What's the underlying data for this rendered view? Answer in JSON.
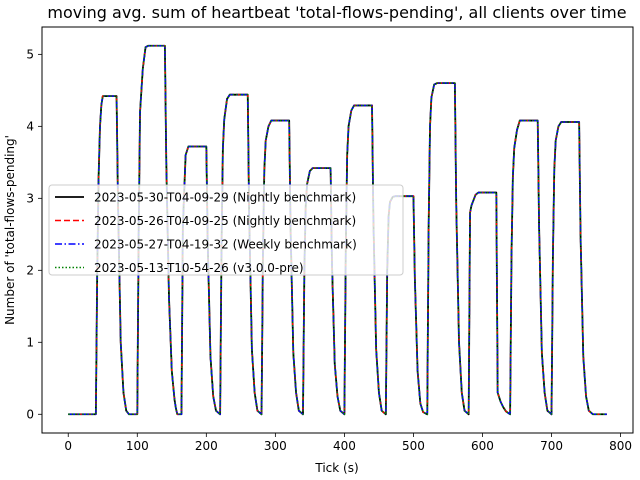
{
  "chart_data": {
    "type": "line",
    "title": "moving avg. sum of heartbeat 'total-flows-pending', all clients over time",
    "xlabel": "Tick (s)",
    "ylabel": "Number of 'total-flows-pending'",
    "xlim": [
      -38,
      818
    ],
    "ylim": [
      -0.26,
      5.38
    ],
    "xticks": [
      0,
      100,
      200,
      300,
      400,
      500,
      600,
      700,
      800
    ],
    "yticks": [
      0,
      1,
      2,
      3,
      4,
      5
    ],
    "grid": false,
    "legend_location": "center-left",
    "x": [
      0,
      40,
      42,
      44,
      46,
      48,
      50,
      54,
      70,
      72,
      76,
      80,
      84,
      88,
      90,
      92,
      100,
      102,
      104,
      108,
      112,
      116,
      120,
      140,
      142,
      146,
      150,
      154,
      156,
      158,
      160,
      162,
      164,
      166,
      170,
      174,
      180,
      200,
      202,
      206,
      210,
      214,
      220,
      222,
      224,
      226,
      230,
      234,
      240,
      260,
      262,
      266,
      270,
      274,
      280,
      282,
      284,
      286,
      290,
      294,
      300,
      320,
      322,
      326,
      330,
      334,
      340,
      342,
      344,
      346,
      350,
      354,
      360,
      380,
      382,
      386,
      390,
      394,
      400,
      402,
      404,
      406,
      410,
      414,
      420,
      440,
      442,
      446,
      450,
      454,
      460,
      462,
      464,
      466,
      470,
      474,
      480,
      500,
      502,
      506,
      510,
      514,
      520,
      522,
      524,
      526,
      530,
      534,
      540,
      560,
      562,
      566,
      570,
      574,
      580,
      582,
      584,
      586,
      590,
      594,
      600,
      620,
      622,
      626,
      630,
      634,
      640,
      642,
      644,
      646,
      650,
      654,
      660,
      680,
      682,
      686,
      690,
      694,
      700,
      702,
      704,
      706,
      710,
      714,
      720,
      740,
      742,
      746,
      750,
      754,
      760,
      780
    ],
    "series": [
      {
        "name": "2023-05-30-T04-09-29 (Nightly benchmark)",
        "color": "#000000",
        "dash": "",
        "width": 1.8,
        "values": [
          0,
          0,
          2.0,
          3.3,
          4.0,
          4.3,
          4.42,
          4.42,
          4.42,
          3.0,
          1.0,
          0.3,
          0.05,
          0,
          0,
          0,
          0,
          2.5,
          4.2,
          4.8,
          5.1,
          5.12,
          5.12,
          5.12,
          3.5,
          1.6,
          0.6,
          0.2,
          0.08,
          0,
          0,
          0,
          0,
          2.6,
          3.6,
          3.72,
          3.72,
          3.72,
          2.4,
          0.8,
          0.25,
          0.05,
          0,
          2.3,
          3.7,
          4.1,
          4.38,
          4.44,
          4.44,
          4.44,
          2.8,
          0.9,
          0.3,
          0.05,
          0,
          2.2,
          3.4,
          3.8,
          4.0,
          4.08,
          4.08,
          4.08,
          2.6,
          0.85,
          0.3,
          0.05,
          0,
          2.0,
          2.9,
          3.2,
          3.38,
          3.42,
          3.42,
          3.42,
          2.1,
          0.7,
          0.25,
          0.05,
          0,
          2.3,
          3.6,
          4.0,
          4.22,
          4.29,
          4.29,
          4.29,
          2.7,
          0.9,
          0.3,
          0.05,
          0,
          2.0,
          2.75,
          2.95,
          3.02,
          3.03,
          3.03,
          3.03,
          1.9,
          0.6,
          0.15,
          0.03,
          0,
          2.6,
          4.0,
          4.4,
          4.58,
          4.6,
          4.6,
          4.6,
          2.9,
          1.0,
          0.3,
          0.05,
          0,
          2.8,
          2.9,
          2.95,
          3.05,
          3.08,
          3.08,
          3.08,
          0.3,
          0.18,
          0.1,
          0.04,
          0,
          2.2,
          3.3,
          3.7,
          3.95,
          4.08,
          4.08,
          4.08,
          2.6,
          0.85,
          0.3,
          0.05,
          0,
          2.2,
          3.4,
          3.8,
          4.0,
          4.06,
          4.06,
          4.06,
          2.5,
          0.8,
          0.25,
          0.05,
          0,
          0
        ]
      },
      {
        "name": "2023-05-26-T04-09-25 (Nightly benchmark)",
        "color": "#ff0000",
        "dash": "6,3",
        "width": 1.5,
        "values": [
          0,
          0,
          2.0,
          3.3,
          4.0,
          4.3,
          4.42,
          4.42,
          4.42,
          3.0,
          1.0,
          0.3,
          0.05,
          0,
          0,
          0,
          0,
          2.5,
          4.2,
          4.8,
          5.1,
          5.12,
          5.12,
          5.12,
          3.5,
          1.6,
          0.6,
          0.2,
          0.08,
          0,
          0,
          0,
          0,
          2.6,
          3.6,
          3.72,
          3.72,
          3.72,
          2.4,
          0.8,
          0.25,
          0.05,
          0,
          2.3,
          3.7,
          4.1,
          4.38,
          4.44,
          4.44,
          4.44,
          2.8,
          0.9,
          0.3,
          0.05,
          0,
          2.2,
          3.4,
          3.8,
          4.0,
          4.08,
          4.08,
          4.08,
          2.6,
          0.85,
          0.3,
          0.05,
          0,
          2.0,
          2.9,
          3.2,
          3.38,
          3.42,
          3.42,
          3.42,
          2.1,
          0.7,
          0.25,
          0.05,
          0,
          2.3,
          3.6,
          4.0,
          4.22,
          4.29,
          4.29,
          4.29,
          2.7,
          0.9,
          0.3,
          0.05,
          0,
          2.0,
          2.75,
          2.95,
          3.02,
          3.03,
          3.03,
          3.03,
          1.9,
          0.6,
          0.15,
          0.03,
          0,
          2.6,
          4.0,
          4.4,
          4.58,
          4.6,
          4.6,
          4.6,
          2.9,
          1.0,
          0.3,
          0.05,
          0,
          2.8,
          2.9,
          2.95,
          3.05,
          3.08,
          3.08,
          3.08,
          0.3,
          0.18,
          0.1,
          0.04,
          0,
          2.2,
          3.3,
          3.7,
          3.95,
          4.08,
          4.08,
          4.08,
          2.6,
          0.85,
          0.3,
          0.05,
          0,
          2.2,
          3.4,
          3.8,
          4.0,
          4.06,
          4.06,
          4.06,
          2.5,
          0.8,
          0.25,
          0.05,
          0,
          0
        ]
      },
      {
        "name": "2023-05-27-T04-19-32 (Weekly benchmark)",
        "color": "#0000ff",
        "dash": "7,2.5,1.5,2.5",
        "width": 1.5,
        "values": [
          0,
          0,
          2.0,
          3.3,
          4.0,
          4.3,
          4.42,
          4.42,
          4.42,
          3.0,
          1.0,
          0.3,
          0.05,
          0,
          0,
          0,
          0,
          2.5,
          4.2,
          4.8,
          5.1,
          5.12,
          5.12,
          5.12,
          3.5,
          1.6,
          0.6,
          0.2,
          0.08,
          0,
          0,
          0,
          0,
          2.6,
          3.6,
          3.72,
          3.72,
          3.72,
          2.4,
          0.8,
          0.25,
          0.05,
          0,
          2.3,
          3.7,
          4.1,
          4.38,
          4.44,
          4.44,
          4.44,
          2.8,
          0.9,
          0.3,
          0.05,
          0,
          2.2,
          3.4,
          3.8,
          4.0,
          4.08,
          4.08,
          4.08,
          2.6,
          0.85,
          0.3,
          0.05,
          0,
          2.0,
          2.9,
          3.2,
          3.38,
          3.42,
          3.42,
          3.42,
          2.1,
          0.7,
          0.25,
          0.05,
          0,
          2.3,
          3.6,
          4.0,
          4.22,
          4.29,
          4.29,
          4.29,
          2.7,
          0.9,
          0.3,
          0.05,
          0,
          2.0,
          2.75,
          2.95,
          3.02,
          3.03,
          3.03,
          3.03,
          1.9,
          0.6,
          0.15,
          0.03,
          0,
          2.6,
          4.0,
          4.4,
          4.58,
          4.6,
          4.6,
          4.6,
          2.9,
          1.0,
          0.3,
          0.05,
          0,
          2.8,
          2.9,
          2.95,
          3.05,
          3.08,
          3.08,
          3.08,
          0.3,
          0.18,
          0.1,
          0.04,
          0,
          2.2,
          3.3,
          3.7,
          3.95,
          4.08,
          4.08,
          4.08,
          2.6,
          0.85,
          0.3,
          0.05,
          0,
          2.2,
          3.4,
          3.8,
          4.0,
          4.06,
          4.06,
          4.06,
          2.5,
          0.8,
          0.25,
          0.05,
          0,
          0
        ]
      },
      {
        "name": "2023-05-13-T10-54-26 (v3.0.0-pre)",
        "color": "#008000",
        "dash": "1.5,2",
        "width": 1.5,
        "values": [
          0,
          0,
          2.0,
          3.3,
          4.0,
          4.3,
          4.42,
          4.42,
          4.42,
          3.0,
          1.0,
          0.3,
          0.05,
          0,
          0,
          0,
          0,
          2.5,
          4.2,
          4.8,
          5.1,
          5.12,
          5.12,
          5.12,
          3.5,
          1.6,
          0.6,
          0.2,
          0.08,
          0,
          0,
          0,
          0,
          2.6,
          3.6,
          3.72,
          3.72,
          3.72,
          2.4,
          0.8,
          0.25,
          0.05,
          0,
          2.3,
          3.7,
          4.1,
          4.38,
          4.44,
          4.44,
          4.44,
          2.8,
          0.9,
          0.3,
          0.05,
          0,
          2.2,
          3.4,
          3.8,
          4.0,
          4.08,
          4.08,
          4.08,
          2.6,
          0.85,
          0.3,
          0.05,
          0,
          2.0,
          2.9,
          3.2,
          3.38,
          3.42,
          3.42,
          3.42,
          2.1,
          0.7,
          0.25,
          0.05,
          0,
          2.3,
          3.6,
          4.0,
          4.22,
          4.29,
          4.29,
          4.29,
          2.7,
          0.9,
          0.3,
          0.05,
          0,
          2.0,
          2.75,
          2.95,
          3.02,
          3.03,
          3.03,
          3.03,
          1.9,
          0.6,
          0.15,
          0.03,
          0,
          2.6,
          4.0,
          4.4,
          4.58,
          4.6,
          4.6,
          4.6,
          2.9,
          1.0,
          0.3,
          0.05,
          0,
          2.8,
          2.9,
          2.95,
          3.05,
          3.08,
          3.08,
          3.08,
          0.3,
          0.18,
          0.1,
          0.04,
          0,
          2.2,
          3.3,
          3.7,
          3.95,
          4.08,
          4.08,
          4.08,
          2.6,
          0.85,
          0.3,
          0.05,
          0,
          2.2,
          3.4,
          3.8,
          4.0,
          4.06,
          4.06,
          4.06,
          2.5,
          0.8,
          0.25,
          0.05,
          0,
          0
        ]
      }
    ]
  }
}
